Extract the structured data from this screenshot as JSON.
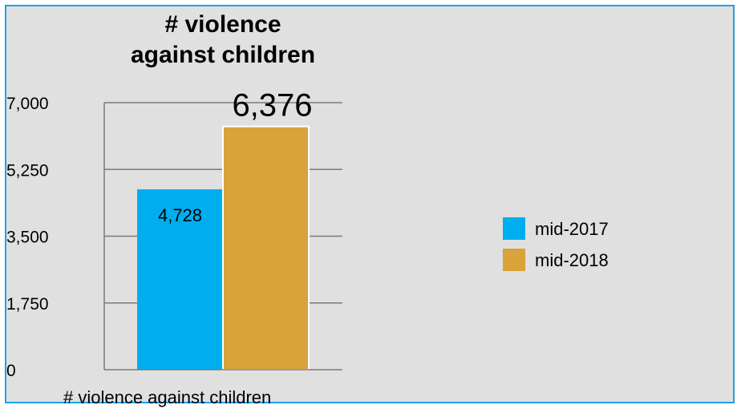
{
  "chart_data": {
    "type": "bar",
    "title": "# violence\nagainst children",
    "categories": [
      "# violence against children"
    ],
    "series": [
      {
        "name": "mid-2017",
        "values": [
          4728
        ],
        "label": "4,728",
        "color": "#00aeef"
      },
      {
        "name": "mid-2018",
        "values": [
          6376
        ],
        "label": "6,376",
        "color": "#d9a23b"
      }
    ],
    "yticks": [
      "0",
      "1,750",
      "3,500",
      "5,250",
      "7,000"
    ],
    "ytick_values": [
      0,
      1750,
      3500,
      5250,
      7000
    ],
    "ylim": [
      0,
      7000
    ],
    "grid": true,
    "legend": "right"
  }
}
